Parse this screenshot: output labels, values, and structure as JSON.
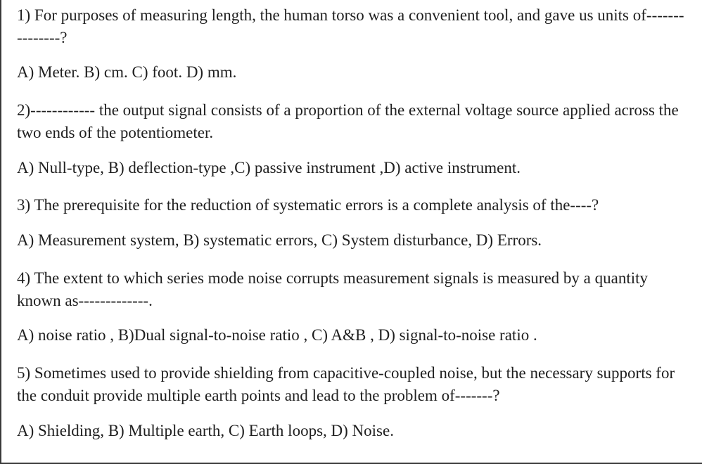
{
  "questions": [
    {
      "prompt": "1) For purposes of measuring length, the human torso was a convenient tool, and gave us units of---------------?",
      "options": "A) Meter. B) cm. C) foot. D) mm."
    },
    {
      "prompt": "2)------------ the output signal consists of a proportion of the external voltage source applied across the two ends of the potentiometer.",
      "options": "A) Null-type, B) deflection-type  ,C) passive instrument ,D) active instrument."
    },
    {
      "prompt": "3) The prerequisite for the reduction of systematic errors is a complete analysis of the----?",
      "options": "A) Measurement system, B) systematic errors, C) System disturbance, D) Errors."
    },
    {
      "prompt": "4) The extent to which series mode noise corrupts measurement signals is measured by a quantity known as-------------.",
      "options": "A) noise ratio  , B)Dual signal-to-noise ratio , C) A&B , D) signal-to-noise ratio ."
    },
    {
      "prompt": "5) Sometimes used to provide shielding from capacitive-coupled noise, but the necessary supports for the conduit provide multiple earth points and lead to the problem of-------?",
      "options": "A) Shielding, B) Multiple earth, C) Earth loops, D) Noise."
    }
  ]
}
